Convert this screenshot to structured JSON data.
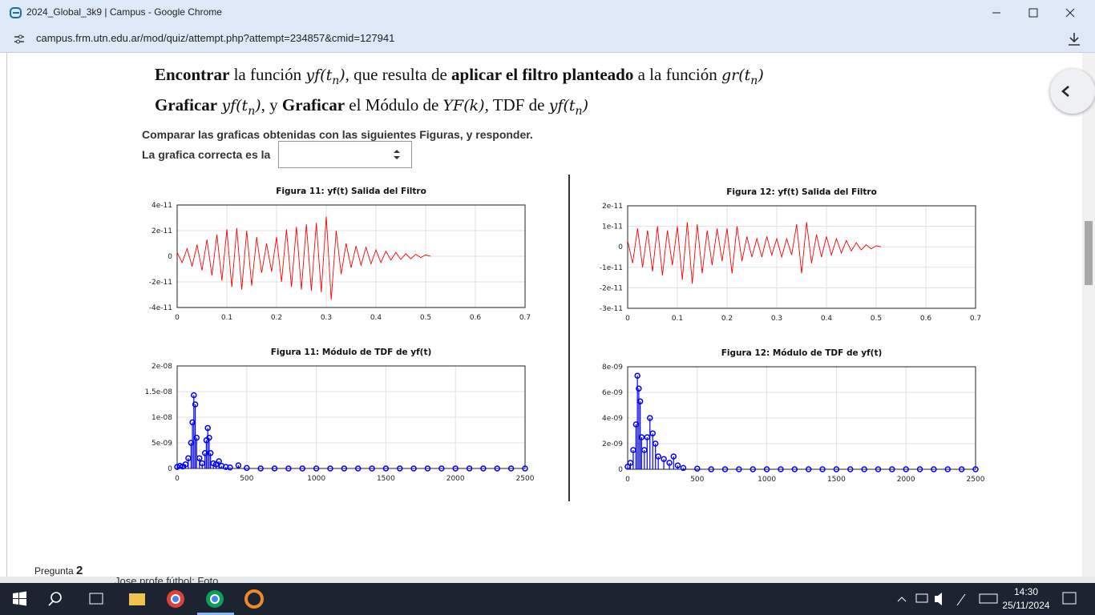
{
  "window": {
    "title": "2024_Global_3k9 | Campus - Google Chrome",
    "url": "campus.frm.utn.edu.ar/mod/quiz/attempt.php?attempt=234857&cmid=127941"
  },
  "question": {
    "lines": [
      [
        {
          "text": "Encontrar",
          "style": "bold"
        },
        {
          "text": " la función ",
          "style": "plain"
        },
        {
          "text": "yf(t",
          "style": "math"
        },
        {
          "text": "n",
          "style": "sub"
        },
        {
          "text": ")",
          "style": "math"
        },
        {
          "text": ", que resulta de ",
          "style": "plain"
        },
        {
          "text": "aplicar el filtro planteado",
          "style": "bold"
        },
        {
          "text": " a la función ",
          "style": "plain"
        },
        {
          "text": "gr(t",
          "style": "math"
        },
        {
          "text": "n",
          "style": "sub"
        },
        {
          "text": ")",
          "style": "math"
        }
      ],
      [
        {
          "text": "Graficar",
          "style": "bold"
        },
        {
          "text": " ",
          "style": "plain"
        },
        {
          "text": "yf(t",
          "style": "math"
        },
        {
          "text": "n",
          "style": "sub"
        },
        {
          "text": ")",
          "style": "math"
        },
        {
          "text": ", y ",
          "style": "plain"
        },
        {
          "text": "Graficar",
          "style": "bold"
        },
        {
          "text": " el Módulo de ",
          "style": "plain"
        },
        {
          "text": "YF(k)",
          "style": "math"
        },
        {
          "text": ", TDF de ",
          "style": "plain"
        },
        {
          "text": "yf(t",
          "style": "math"
        },
        {
          "text": "n",
          "style": "sub"
        },
        {
          "text": ")",
          "style": "math"
        }
      ]
    ],
    "instruction": "Comparar las graficas obtenidas con las siguientes Figuras, y responder.",
    "answer_label": "La grafica correcta es la"
  },
  "chart_data": [
    {
      "type": "line",
      "title": "Figura 11: yf(t) Salida del Filtro",
      "color": "#ff0000",
      "grid": true,
      "x": [
        0,
        0.01,
        0.02,
        0.03,
        0.04,
        0.05,
        0.06,
        0.07,
        0.08,
        0.09,
        0.1,
        0.11,
        0.12,
        0.13,
        0.14,
        0.15,
        0.16,
        0.17,
        0.18,
        0.19,
        0.2,
        0.21,
        0.22,
        0.23,
        0.24,
        0.25,
        0.26,
        0.27,
        0.28,
        0.29,
        0.3,
        0.31,
        0.32,
        0.33,
        0.34,
        0.35,
        0.36,
        0.37,
        0.38,
        0.39,
        0.4,
        0.41,
        0.42,
        0.43,
        0.44,
        0.45,
        0.46,
        0.47,
        0.48,
        0.49,
        0.5,
        0.51
      ],
      "values": [
        3e-12,
        -5e-12,
        6e-12,
        -8e-12,
        9e-12,
        -1.1e-11,
        1.3e-11,
        -1.5e-11,
        1.7e-11,
        -1.9e-11,
        2.1e-11,
        -2.4e-11,
        2.2e-11,
        -2.6e-11,
        2e-11,
        -2.3e-11,
        1.5e-11,
        -1.3e-11,
        1e-11,
        -1.2e-11,
        1.5e-11,
        -2e-11,
        2.1e-11,
        -2.4e-11,
        2.3e-11,
        -2.6e-11,
        2.5e-11,
        -2.7e-11,
        2.6e-11,
        -2.8e-11,
        3.1e-11,
        -3.4e-11,
        2e-11,
        -1.4e-11,
        1e-11,
        -9e-12,
        8e-12,
        -7e-12,
        7e-12,
        -6e-12,
        5e-12,
        -5e-12,
        4e-12,
        -3e-12,
        3e-12,
        -2.5e-12,
        2e-12,
        -2e-12,
        1.5e-12,
        -1e-12,
        1e-12,
        0
      ],
      "xlim": [
        0,
        0.7
      ],
      "xticks": [
        0,
        0.1,
        0.2,
        0.3,
        0.4,
        0.5,
        0.6,
        0.7
      ],
      "ylim": [
        -4e-11,
        4e-11
      ],
      "yticks": [
        -4e-11,
        -2e-11,
        0,
        2e-11,
        4e-11
      ]
    },
    {
      "type": "line",
      "title": "Figura 12: yf(t) Salida del Filtro",
      "color": "#ff0000",
      "grid": true,
      "x": [
        0,
        0.01,
        0.02,
        0.03,
        0.04,
        0.05,
        0.06,
        0.07,
        0.08,
        0.09,
        0.1,
        0.11,
        0.12,
        0.13,
        0.14,
        0.15,
        0.16,
        0.17,
        0.18,
        0.19,
        0.2,
        0.21,
        0.22,
        0.23,
        0.24,
        0.25,
        0.26,
        0.27,
        0.28,
        0.29,
        0.3,
        0.31,
        0.32,
        0.33,
        0.34,
        0.35,
        0.36,
        0.37,
        0.38,
        0.39,
        0.4,
        0.41,
        0.42,
        0.43,
        0.44,
        0.45,
        0.46,
        0.47,
        0.48,
        0.49,
        0.5,
        0.51
      ],
      "values": [
        3e-12,
        -8e-12,
        9e-12,
        -1e-11,
        8e-12,
        -1.2e-11,
        1e-11,
        -1.4e-11,
        8e-12,
        -9e-12,
        1e-11,
        -1.6e-11,
        1.2e-11,
        -1.8e-11,
        1.1e-11,
        -1.3e-11,
        8e-12,
        -9e-12,
        9e-12,
        -7e-12,
        9e-12,
        -1.3e-11,
        1e-11,
        -7e-12,
        5e-12,
        -5e-12,
        4e-12,
        -5e-12,
        5e-12,
        -4e-12,
        4e-12,
        -5e-12,
        4e-12,
        -4e-12,
        1.1e-11,
        -1.3e-11,
        1.2e-11,
        -8e-12,
        6e-12,
        -5e-12,
        5e-12,
        -4e-12,
        4e-12,
        -3e-12,
        3e-12,
        -2e-12,
        2e-12,
        -1.5e-12,
        1e-12,
        -1e-12,
        5e-13,
        0
      ],
      "xlim": [
        0,
        0.7
      ],
      "xticks": [
        0,
        0.1,
        0.2,
        0.3,
        0.4,
        0.5,
        0.6,
        0.7
      ],
      "ylim": [
        -3e-11,
        2e-11
      ],
      "yticks": [
        -3e-11,
        -2e-11,
        -1e-11,
        0,
        1e-11,
        2e-11
      ]
    },
    {
      "type": "stem",
      "title": "Figura 11: Módulo de TDF de yf(t)",
      "color": "#0000ff",
      "grid": true,
      "x": [
        0,
        20,
        40,
        60,
        80,
        100,
        110,
        120,
        130,
        140,
        160,
        180,
        200,
        210,
        220,
        230,
        240,
        260,
        280,
        300,
        320,
        350,
        380,
        440,
        500,
        600,
        700,
        800,
        900,
        1000,
        1100,
        1200,
        1300,
        1400,
        1500,
        1600,
        1700,
        1800,
        1900,
        2000,
        2100,
        2200,
        2300,
        2400,
        2500
      ],
      "values": [
        3e-10,
        5e-10,
        4e-10,
        8e-10,
        2e-09,
        5e-09,
        9e-09,
        1.43e-08,
        1.25e-08,
        6e-09,
        2e-09,
        1e-09,
        3e-09,
        5.5e-09,
        7.9e-09,
        6e-09,
        3e-09,
        1e-09,
        8e-10,
        1.4e-09,
        5e-10,
        3e-10,
        2e-10,
        6e-10,
        1e-10,
        0,
        0,
        0,
        0,
        0,
        0,
        0,
        0,
        0,
        0,
        0,
        0,
        0,
        0,
        0,
        0,
        0,
        0,
        0,
        0
      ],
      "xlim": [
        0,
        2500
      ],
      "xticks": [
        0,
        500,
        1000,
        1500,
        2000,
        2500
      ],
      "ylim": [
        0,
        2e-08
      ],
      "yticks": [
        0,
        {
          "value": 5e-09,
          "label": "5e-09"
        },
        {
          "value": 1e-08,
          "label": "1e-08"
        },
        {
          "value": 1.5e-08,
          "label": "1.5e-08"
        },
        {
          "value": 2e-08,
          "label": "2e-08"
        }
      ]
    },
    {
      "type": "stem",
      "title": "Figura 12: Módulo de TDF de yf(t)",
      "color": "#0000ff",
      "grid": true,
      "x": [
        0,
        20,
        40,
        60,
        70,
        80,
        90,
        100,
        120,
        140,
        160,
        180,
        200,
        220,
        260,
        300,
        330,
        360,
        400,
        500,
        600,
        700,
        800,
        900,
        1000,
        1100,
        1200,
        1300,
        1400,
        1500,
        1600,
        1700,
        1800,
        1900,
        2000,
        2100,
        2200,
        2300,
        2400,
        2500
      ],
      "values": [
        2e-10,
        5e-10,
        1.5e-09,
        3.5e-09,
        7.3e-09,
        6.3e-09,
        5.3e-09,
        2.5e-09,
        1.5e-09,
        2.5e-09,
        4e-09,
        2.8e-09,
        2e-09,
        1e-09,
        8e-10,
        5e-10,
        1e-09,
        3e-10,
        1e-10,
        5e-11,
        0,
        0,
        0,
        0,
        0,
        0,
        0,
        0,
        0,
        0,
        0,
        0,
        0,
        0,
        0,
        0,
        0,
        0,
        0,
        0
      ],
      "xlim": [
        0,
        2500
      ],
      "xticks": [
        0,
        500,
        1000,
        1500,
        2000,
        2500
      ],
      "ylim": [
        0,
        8e-09
      ],
      "yticks": [
        0,
        {
          "value": 2e-09,
          "label": "2e-09"
        },
        {
          "value": 4e-09,
          "label": "4e-09"
        },
        {
          "value": 6e-09,
          "label": "6e-09"
        },
        {
          "value": 8e-09,
          "label": "8e-09"
        }
      ]
    }
  ],
  "footer": {
    "question_label": "Pregunta",
    "question_number": 2,
    "chat_preview": "Jose profe fútbol: Foto"
  },
  "taskbar": {
    "time": "14:30",
    "date": "25/11/2024"
  }
}
